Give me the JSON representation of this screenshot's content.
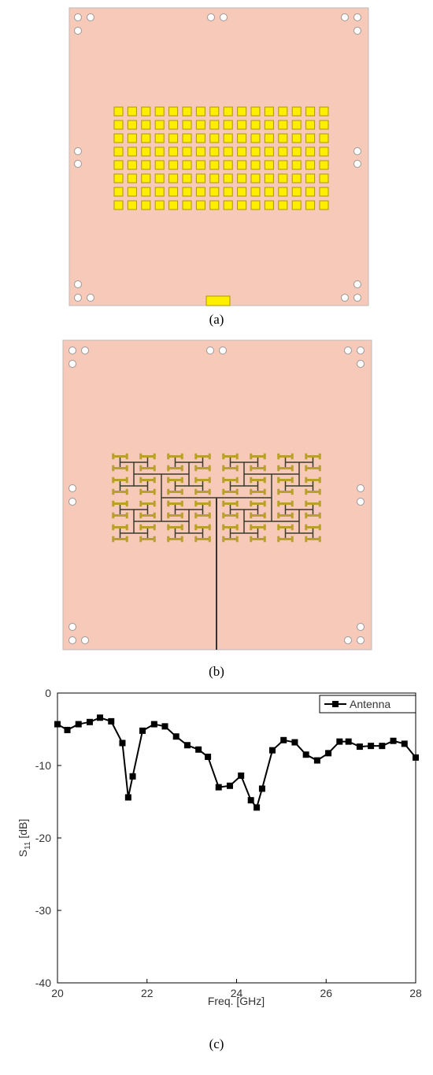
{
  "panels": {
    "a": {
      "label": "(a)"
    },
    "b": {
      "label": "(b)"
    }
  },
  "chart_data": {
    "type": "line",
    "caption": "(c)",
    "x_label": "Freq. [GHz]",
    "y_label_parts": [
      "S",
      "11",
      " [dB]"
    ],
    "xlim": [
      20,
      28
    ],
    "ylim": [
      -40,
      0
    ],
    "xticks": [
      20,
      22,
      24,
      26,
      28
    ],
    "yticks": [
      -40,
      -30,
      -20,
      -10,
      0
    ],
    "legend": "upper right",
    "series": [
      {
        "name": "Antenna",
        "color": "#000000",
        "marker": "square",
        "x": [
          20.0,
          20.22,
          20.47,
          20.72,
          20.95,
          21.2,
          21.45,
          21.58,
          21.68,
          21.9,
          22.16,
          22.4,
          22.65,
          22.9,
          23.15,
          23.36,
          23.6,
          23.85,
          24.1,
          24.32,
          24.45,
          24.57,
          24.8,
          25.05,
          25.3,
          25.55,
          25.8,
          26.05,
          26.3,
          26.5,
          26.75,
          27.0,
          27.25,
          27.5,
          27.75,
          28.0
        ],
        "values": [
          -4.3,
          -5.1,
          -4.3,
          -4.0,
          -3.4,
          -3.9,
          -6.9,
          -14.4,
          -11.5,
          -5.2,
          -4.3,
          -4.6,
          -6.0,
          -7.2,
          -7.8,
          -8.8,
          -13.0,
          -12.8,
          -11.4,
          -14.8,
          -15.8,
          -13.2,
          -7.9,
          -6.5,
          -6.8,
          -8.5,
          -9.3,
          -8.3,
          -6.7,
          -6.7,
          -7.4,
          -7.3,
          -7.3,
          -6.6,
          -7.0,
          -8.9
        ]
      }
    ]
  }
}
